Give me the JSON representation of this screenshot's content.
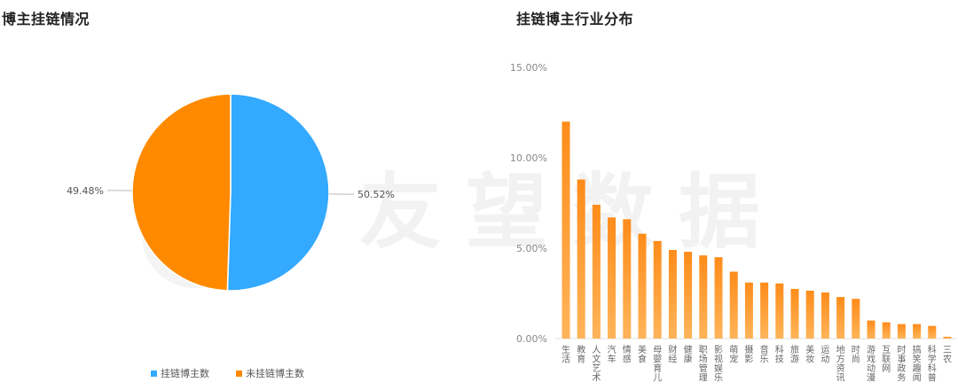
{
  "left_panel": {
    "title": "博主挂链情况"
  },
  "right_panel": {
    "title": "挂链博主行业分布"
  },
  "watermark": {
    "text": "友望数据"
  },
  "colors": {
    "blue": "#33a9ff",
    "orange": "#ff8a00",
    "bar_top": "#ff8c1a",
    "bar_bottom": "#ffb45a"
  },
  "chart_data": [
    {
      "type": "pie",
      "slices": [
        {
          "name": "挂链博主数",
          "value": 50.52,
          "label": "50.52%",
          "color": "#33a9ff"
        },
        {
          "name": "未挂链博主数",
          "value": 49.48,
          "label": "49.48%",
          "color": "#ff8a00"
        }
      ],
      "legend_position": "bottom"
    },
    {
      "type": "bar",
      "categories": [
        "生活",
        "教育",
        "人文艺术",
        "汽车",
        "情感",
        "美食",
        "母婴育儿",
        "财经",
        "健康",
        "职场管理",
        "影视娱乐",
        "萌宠",
        "摄影",
        "音乐",
        "科技",
        "旅游",
        "美妆",
        "运动",
        "地方资讯",
        "时尚",
        "游戏动漫",
        "互联网",
        "时事政务",
        "搞笑趣闻",
        "科学科普",
        "三农"
      ],
      "values": [
        12.0,
        8.8,
        7.4,
        6.7,
        6.6,
        5.8,
        5.4,
        4.9,
        4.8,
        4.6,
        4.5,
        3.7,
        3.1,
        3.1,
        3.05,
        2.75,
        2.65,
        2.55,
        2.3,
        2.2,
        1.0,
        0.9,
        0.8,
        0.8,
        0.7,
        0.1
      ],
      "ylim": [
        0,
        15
      ],
      "yticks": [
        "0.00%",
        "5.00%",
        "10.00%",
        "15.00%"
      ],
      "grid": false
    }
  ]
}
